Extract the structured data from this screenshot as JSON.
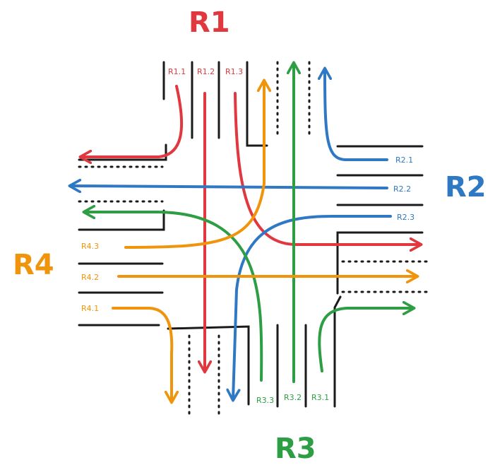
{
  "colors": {
    "r1": "#e0383e",
    "r2": "#2f78c4",
    "r3": "#2e9e44",
    "r4": "#f0940c",
    "road": "#1a1a1a"
  },
  "roads": {
    "r1": "R1",
    "r2": "R2",
    "r3": "R3",
    "r4": "R4"
  },
  "lanes": {
    "r1_1": "R1.1",
    "r1_2": "R1.2",
    "r1_3": "R1.3",
    "r2_1": "R2.1",
    "r2_2": "R2.2",
    "r2_3": "R2.3",
    "r3_1": "R3.1",
    "r3_2": "R3.2",
    "r3_3": "R3.3",
    "r4_1": "R4.1",
    "r4_2": "R4.2",
    "r4_3": "R4.3"
  }
}
